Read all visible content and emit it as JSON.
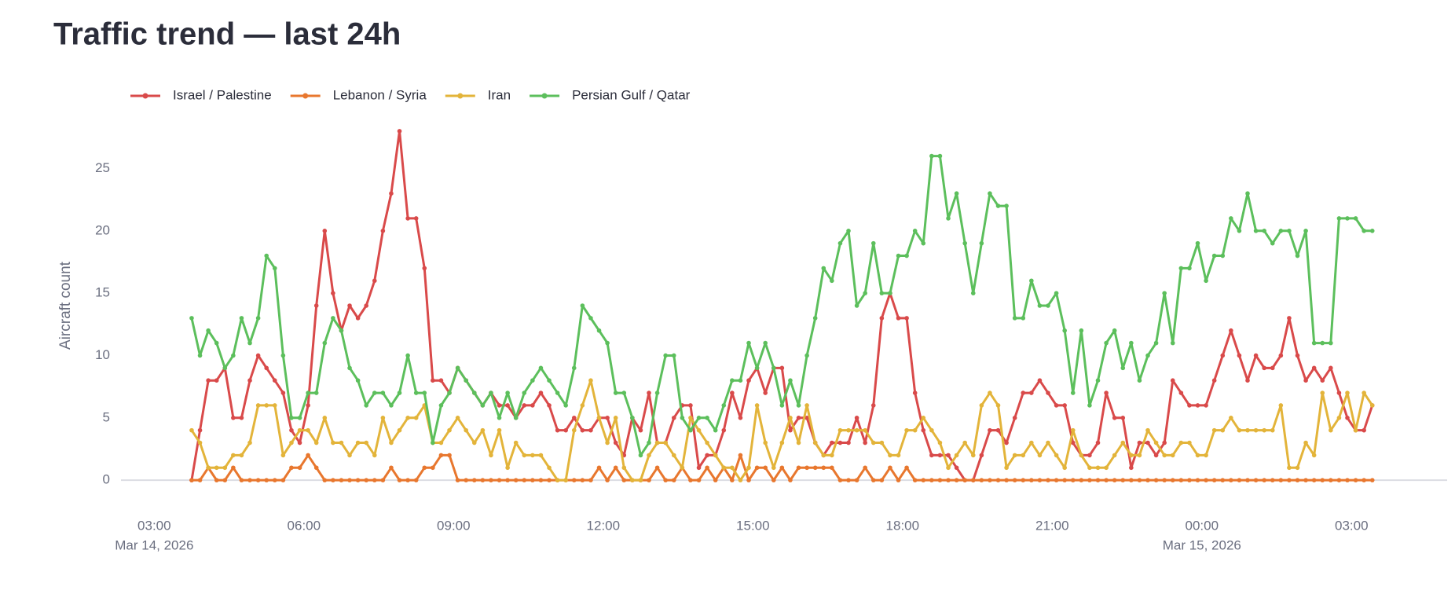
{
  "chart_data": {
    "type": "line",
    "title": "Traffic trend — last 24h",
    "y_label": "Aircraft count",
    "x": [
      "2026-03-14T03:45",
      "2026-03-14T03:55",
      "2026-03-14T04:05",
      "2026-03-14T04:15",
      "2026-03-14T04:25",
      "2026-03-14T04:35",
      "2026-03-14T04:45",
      "2026-03-14T04:55",
      "2026-03-14T05:05",
      "2026-03-14T05:15",
      "2026-03-14T05:25",
      "2026-03-14T05:35",
      "2026-03-14T05:45",
      "2026-03-14T05:55",
      "2026-03-14T06:05",
      "2026-03-14T06:15",
      "2026-03-14T06:25",
      "2026-03-14T06:35",
      "2026-03-14T06:45",
      "2026-03-14T06:55",
      "2026-03-14T07:05",
      "2026-03-14T07:15",
      "2026-03-14T07:25",
      "2026-03-14T07:35",
      "2026-03-14T07:45",
      "2026-03-14T07:55",
      "2026-03-14T08:05",
      "2026-03-14T08:15",
      "2026-03-14T08:25",
      "2026-03-14T08:35",
      "2026-03-14T08:45",
      "2026-03-14T08:55",
      "2026-03-14T09:05",
      "2026-03-14T09:15",
      "2026-03-14T09:25",
      "2026-03-14T09:35",
      "2026-03-14T09:45",
      "2026-03-14T09:55",
      "2026-03-14T10:05",
      "2026-03-14T10:15",
      "2026-03-14T10:25",
      "2026-03-14T10:35",
      "2026-03-14T10:45",
      "2026-03-14T10:55",
      "2026-03-14T11:05",
      "2026-03-14T11:15",
      "2026-03-14T11:25",
      "2026-03-14T11:35",
      "2026-03-14T11:45",
      "2026-03-14T11:55",
      "2026-03-14T12:05",
      "2026-03-14T12:15",
      "2026-03-14T12:25",
      "2026-03-14T12:35",
      "2026-03-14T12:45",
      "2026-03-14T12:55",
      "2026-03-14T13:05",
      "2026-03-14T13:15",
      "2026-03-14T13:25",
      "2026-03-14T13:35",
      "2026-03-14T13:45",
      "2026-03-14T13:55",
      "2026-03-14T14:05",
      "2026-03-14T14:15",
      "2026-03-14T14:25",
      "2026-03-14T14:35",
      "2026-03-14T14:45",
      "2026-03-14T14:55",
      "2026-03-14T15:05",
      "2026-03-14T15:15",
      "2026-03-14T15:25",
      "2026-03-14T15:35",
      "2026-03-14T15:45",
      "2026-03-14T15:55",
      "2026-03-14T16:05",
      "2026-03-14T16:15",
      "2026-03-14T16:25",
      "2026-03-14T16:35",
      "2026-03-14T16:45",
      "2026-03-14T16:55",
      "2026-03-14T17:05",
      "2026-03-14T17:15",
      "2026-03-14T17:25",
      "2026-03-14T17:35",
      "2026-03-14T17:45",
      "2026-03-14T17:55",
      "2026-03-14T18:05",
      "2026-03-14T18:15",
      "2026-03-14T18:25",
      "2026-03-14T18:35",
      "2026-03-14T18:45",
      "2026-03-14T18:55",
      "2026-03-14T19:05",
      "2026-03-14T19:15",
      "2026-03-14T19:25",
      "2026-03-14T19:35",
      "2026-03-14T19:45",
      "2026-03-14T19:55",
      "2026-03-14T20:05",
      "2026-03-14T20:15",
      "2026-03-14T20:25",
      "2026-03-14T20:35",
      "2026-03-14T20:45",
      "2026-03-14T20:55",
      "2026-03-14T21:05",
      "2026-03-14T21:15",
      "2026-03-14T21:25",
      "2026-03-14T21:35",
      "2026-03-14T21:45",
      "2026-03-14T21:55",
      "2026-03-14T22:05",
      "2026-03-14T22:15",
      "2026-03-14T22:25",
      "2026-03-14T22:35",
      "2026-03-14T22:45",
      "2026-03-14T22:55",
      "2026-03-14T23:05",
      "2026-03-14T23:15",
      "2026-03-14T23:25",
      "2026-03-14T23:35",
      "2026-03-14T23:45",
      "2026-03-14T23:55",
      "2026-03-15T00:05",
      "2026-03-15T00:15",
      "2026-03-15T00:25",
      "2026-03-15T00:35",
      "2026-03-15T00:45",
      "2026-03-15T00:55",
      "2026-03-15T01:05",
      "2026-03-15T01:15",
      "2026-03-15T01:25",
      "2026-03-15T01:35",
      "2026-03-15T01:45",
      "2026-03-15T01:55",
      "2026-03-15T02:05",
      "2026-03-15T02:15",
      "2026-03-15T02:25",
      "2026-03-15T02:35",
      "2026-03-15T02:45",
      "2026-03-15T02:55",
      "2026-03-15T03:05",
      "2026-03-15T03:15",
      "2026-03-15T03:25"
    ],
    "series": [
      {
        "name": "Israel / Palestine",
        "color": "#d94a4a",
        "values": [
          0,
          4,
          8,
          8,
          9,
          5,
          5,
          8,
          10,
          9,
          8,
          7,
          4,
          3,
          6,
          14,
          20,
          15,
          12,
          14,
          13,
          14,
          16,
          20,
          23,
          28,
          21,
          21,
          17,
          8,
          8,
          7,
          9,
          8,
          7,
          6,
          7,
          6,
          6,
          5,
          6,
          6,
          7,
          6,
          4,
          4,
          5,
          4,
          4,
          5,
          5,
          3,
          2,
          5,
          4,
          7,
          3,
          3,
          5,
          6,
          6,
          1,
          2,
          2,
          4,
          7,
          5,
          8,
          9,
          7,
          9,
          9,
          4,
          5,
          5,
          3,
          2,
          3,
          3,
          3,
          5,
          3,
          6,
          13,
          15,
          13,
          13,
          7,
          4,
          2,
          2,
          2,
          1,
          0,
          0,
          2,
          4,
          4,
          3,
          5,
          7,
          7,
          8,
          7,
          6,
          6,
          3,
          2,
          2,
          3,
          7,
          5,
          5,
          1,
          3,
          3,
          2,
          3,
          8,
          7,
          6,
          6,
          6,
          8,
          10,
          12,
          10,
          8,
          10,
          9,
          9,
          10,
          13,
          10,
          8,
          9,
          8,
          9,
          7,
          5,
          4,
          4,
          6
        ]
      },
      {
        "name": "Lebanon / Syria",
        "color": "#e8772e",
        "values": [
          0,
          0,
          1,
          0,
          0,
          1,
          0,
          0,
          0,
          0,
          0,
          0,
          1,
          1,
          2,
          1,
          0,
          0,
          0,
          0,
          0,
          0,
          0,
          0,
          1,
          0,
          0,
          0,
          1,
          1,
          2,
          2,
          0,
          0,
          0,
          0,
          0,
          0,
          0,
          0,
          0,
          0,
          0,
          0,
          0,
          0,
          0,
          0,
          0,
          1,
          0,
          1,
          0,
          0,
          0,
          0,
          1,
          0,
          0,
          1,
          0,
          0,
          1,
          0,
          1,
          0,
          2,
          0,
          1,
          1,
          0,
          1,
          0,
          1,
          1,
          1,
          1,
          1,
          0,
          0,
          0,
          1,
          0,
          0,
          1,
          0,
          1,
          0,
          0,
          0,
          0,
          0,
          0,
          0,
          0,
          0,
          0,
          0,
          0,
          0,
          0,
          0,
          0,
          0,
          0,
          0,
          0,
          0,
          0,
          0,
          0,
          0,
          0,
          0,
          0,
          0,
          0,
          0,
          0,
          0,
          0,
          0,
          0,
          0,
          0,
          0,
          0,
          0,
          0,
          0,
          0,
          0,
          0,
          0,
          0,
          0,
          0,
          0,
          0,
          0,
          0,
          0,
          0
        ]
      },
      {
        "name": "Iran",
        "color": "#e3b43a",
        "values": [
          4,
          3,
          1,
          1,
          1,
          2,
          2,
          3,
          6,
          6,
          6,
          2,
          3,
          4,
          4,
          3,
          5,
          3,
          3,
          2,
          3,
          3,
          2,
          5,
          3,
          4,
          5,
          5,
          6,
          3,
          3,
          4,
          5,
          4,
          3,
          4,
          2,
          4,
          1,
          3,
          2,
          2,
          2,
          1,
          0,
          0,
          4,
          6,
          8,
          5,
          3,
          5,
          1,
          0,
          0,
          2,
          3,
          3,
          2,
          1,
          5,
          4,
          3,
          2,
          1,
          1,
          0,
          1,
          6,
          3,
          1,
          3,
          5,
          3,
          6,
          3,
          2,
          2,
          4,
          4,
          4,
          4,
          3,
          3,
          2,
          2,
          4,
          4,
          5,
          4,
          3,
          1,
          2,
          3,
          2,
          6,
          7,
          6,
          1,
          2,
          2,
          3,
          2,
          3,
          2,
          1,
          4,
          2,
          1,
          1,
          1,
          2,
          3,
          2,
          2,
          4,
          3,
          2,
          2,
          3,
          3,
          2,
          2,
          4,
          4,
          5,
          4,
          4,
          4,
          4,
          4,
          6,
          1,
          1,
          3,
          2,
          7,
          4,
          5,
          7,
          4,
          7,
          6
        ]
      },
      {
        "name": "Persian Gulf / Qatar",
        "color": "#5cbf5c",
        "values": [
          13,
          10,
          12,
          11,
          9,
          10,
          13,
          11,
          13,
          18,
          17,
          10,
          5,
          5,
          7,
          7,
          11,
          13,
          12,
          9,
          8,
          6,
          7,
          7,
          6,
          7,
          10,
          7,
          7,
          3,
          6,
          7,
          9,
          8,
          7,
          6,
          7,
          5,
          7,
          5,
          7,
          8,
          9,
          8,
          7,
          6,
          9,
          14,
          13,
          12,
          11,
          7,
          7,
          5,
          2,
          3,
          7,
          10,
          10,
          5,
          4,
          5,
          5,
          4,
          6,
          8,
          8,
          11,
          9,
          11,
          9,
          6,
          8,
          6,
          10,
          13,
          17,
          16,
          19,
          20,
          14,
          15,
          19,
          15,
          15,
          18,
          18,
          20,
          19,
          26,
          26,
          21,
          23,
          19,
          15,
          19,
          23,
          22,
          22,
          13,
          13,
          16,
          14,
          14,
          15,
          12,
          7,
          12,
          6,
          8,
          11,
          12,
          9,
          11,
          8,
          10,
          11,
          15,
          11,
          17,
          17,
          19,
          16,
          18,
          18,
          21,
          20,
          23,
          20,
          20,
          19,
          20,
          20,
          18,
          20,
          11,
          11,
          11,
          21,
          21,
          21,
          20,
          20
        ]
      }
    ],
    "xlim": [
      "2026-03-14T02:20",
      "2026-03-15T04:55"
    ],
    "xticks": [
      {
        "value": "2026-03-14T03:00",
        "label": "03:00",
        "date": "Mar 14, 2026"
      },
      {
        "value": "2026-03-14T06:00",
        "label": "06:00"
      },
      {
        "value": "2026-03-14T09:00",
        "label": "09:00"
      },
      {
        "value": "2026-03-14T12:00",
        "label": "12:00"
      },
      {
        "value": "2026-03-14T15:00",
        "label": "15:00"
      },
      {
        "value": "2026-03-14T18:00",
        "label": "18:00"
      },
      {
        "value": "2026-03-14T21:00",
        "label": "21:00"
      },
      {
        "value": "2026-03-15T00:00",
        "label": "00:00",
        "date": "Mar 15, 2026"
      },
      {
        "value": "2026-03-15T03:00",
        "label": "03:00"
      }
    ],
    "ylim": [
      -1,
      29
    ],
    "yticks": [
      0,
      5,
      10,
      15,
      20,
      25
    ],
    "zeroline": true,
    "grid": false,
    "legend": "top-left"
  }
}
